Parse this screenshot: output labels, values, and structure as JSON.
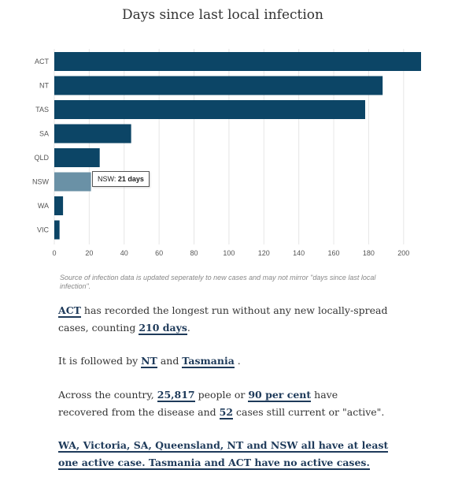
{
  "chart_data": {
    "type": "bar",
    "orientation": "horizontal",
    "title": "Days since last local infection",
    "categories": [
      "ACT",
      "NT",
      "TAS",
      "SA",
      "QLD",
      "NSW",
      "WA",
      "VIC"
    ],
    "values": [
      210,
      188,
      178,
      44,
      26,
      21,
      5,
      3
    ],
    "xlim": [
      0,
      210
    ],
    "xticks": [
      0,
      20,
      40,
      60,
      80,
      100,
      120,
      140,
      160,
      180,
      200
    ],
    "grid": true,
    "colors": {
      "bar": "#0c4566",
      "highlight": "#6a91a6"
    },
    "highlight_index": 5
  },
  "tooltip": {
    "label": "NSW: ",
    "value": "21 days"
  },
  "source_note": "Source of infection data is updated seperately to new cases and may not mirror \"days since last local infection\".",
  "paragraphs": {
    "p1": {
      "a": "ACT",
      "b": " has recorded the longest run without any new locally-spread cases, counting ",
      "c": "210 days",
      "d": "."
    },
    "p2": {
      "a": "It is followed by ",
      "b": "NT",
      "c": " and ",
      "d": "Tasmania",
      "e": " ."
    },
    "p3": {
      "a": "Across the country, ",
      "b": "25,817",
      "c": " people or ",
      "d": "90 per cent",
      "e": " have recovered from the disease and ",
      "f": "52",
      "g": " cases still current or \"active\"."
    },
    "p4": {
      "a": "WA, Victoria, SA, Queensland, NT and NSW all have at least one active case. Tasmania and ACT have no active cases."
    }
  }
}
